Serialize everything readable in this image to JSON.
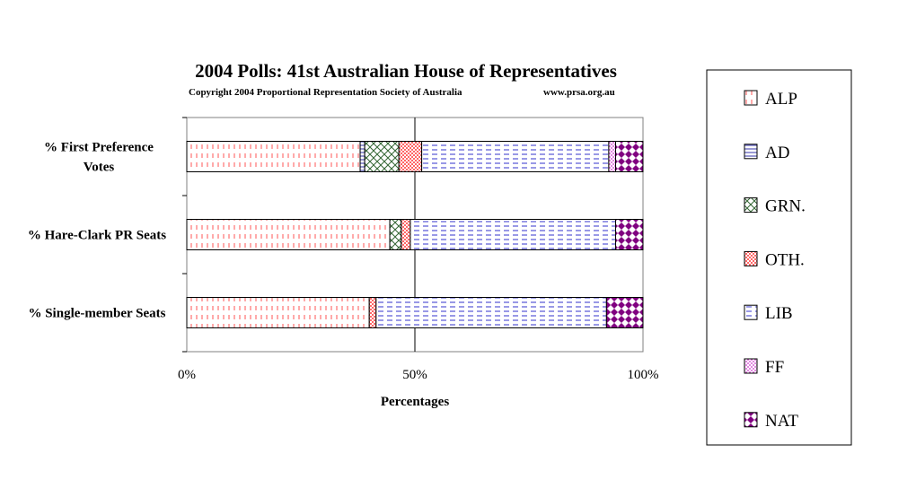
{
  "chart_data": {
    "type": "bar",
    "orientation": "horizontal",
    "stacked": "percent",
    "title": "2004 Polls: 41st Australian House of Representatives",
    "subtitle": "Copyright 2004 Proportional Representation Society of Australia",
    "source": "www.prsa.org.au",
    "xlabel": "Percentages",
    "xlim": [
      0,
      100
    ],
    "xticks": [
      "0%",
      "50%",
      "100%"
    ],
    "grid": "vertical lines at 50% and 100%",
    "legend_position": "right",
    "categories": [
      "% First Preference Votes",
      "% Hare-Clark PR Seats",
      "% Single-member Seats"
    ],
    "series": [
      {
        "name": "ALP",
        "color": "#ff6666",
        "pattern": "vertical-dash",
        "values": [
          38.0,
          44.5,
          40.0
        ]
      },
      {
        "name": "AD",
        "color": "#3333aa",
        "pattern": "horizontal-line",
        "values": [
          1.0,
          0.0,
          0.0
        ]
      },
      {
        "name": "GRN.",
        "color": "#336633",
        "pattern": "crosshatch",
        "values": [
          7.5,
          2.5,
          0.0
        ]
      },
      {
        "name": "OTH.",
        "color": "#ff6666",
        "pattern": "checker",
        "values": [
          5.0,
          2.0,
          1.5
        ]
      },
      {
        "name": "LIB",
        "color": "#3333cc",
        "pattern": "horizontal-dash",
        "values": [
          41.0,
          45.0,
          50.5
        ]
      },
      {
        "name": "FF",
        "color": "#cc33cc",
        "pattern": "dots",
        "values": [
          1.5,
          0.0,
          0.0
        ]
      },
      {
        "name": "NAT",
        "color": "#800080",
        "pattern": "diamonds",
        "values": [
          6.0,
          6.0,
          8.0
        ]
      }
    ]
  }
}
